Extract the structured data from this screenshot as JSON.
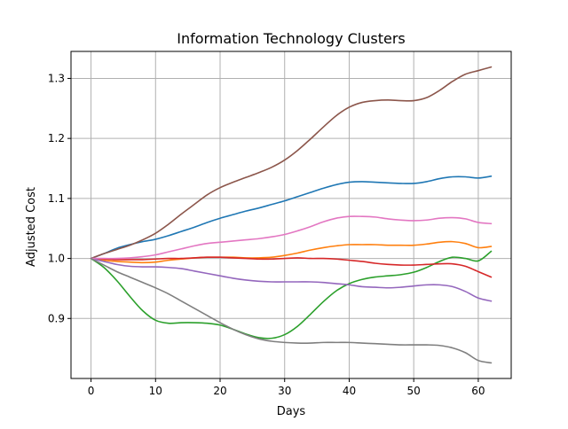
{
  "chart_data": {
    "type": "line",
    "title": "Information Technology Clusters",
    "xlabel": "Days",
    "ylabel": "Adjusted Cost",
    "xlim": [
      -3.1,
      65.1
    ],
    "ylim": [
      0.8,
      1.345
    ],
    "xticks": [
      0,
      10,
      20,
      30,
      40,
      50,
      60
    ],
    "yticks": [
      0.9,
      1.0,
      1.1,
      1.2,
      1.3
    ],
    "xtick_labels": [
      "0",
      "10",
      "20",
      "30",
      "40",
      "50",
      "60"
    ],
    "ytick_labels": [
      "0.9",
      "1.0",
      "1.1",
      "1.2",
      "1.3"
    ],
    "grid": true,
    "x": [
      0,
      2,
      4,
      6,
      8,
      10,
      12,
      14,
      16,
      18,
      20,
      22,
      24,
      26,
      28,
      30,
      32,
      34,
      36,
      38,
      40,
      42,
      44,
      46,
      48,
      50,
      52,
      54,
      56,
      58,
      60,
      62
    ],
    "series": [
      {
        "color": "#1f77b4",
        "values": [
          1.0,
          1.008,
          1.017,
          1.023,
          1.028,
          1.032,
          1.038,
          1.045,
          1.052,
          1.06,
          1.067,
          1.073,
          1.079,
          1.084,
          1.09,
          1.096,
          1.103,
          1.11,
          1.117,
          1.123,
          1.127,
          1.128,
          1.127,
          1.126,
          1.125,
          1.125,
          1.128,
          1.133,
          1.136,
          1.136,
          1.134,
          1.137
        ]
      },
      {
        "color": "#ff7f0e",
        "values": [
          1.0,
          0.997,
          0.995,
          0.994,
          0.993,
          0.994,
          0.997,
          0.999,
          1.001,
          1.002,
          1.002,
          1.002,
          1.001,
          1.001,
          1.002,
          1.005,
          1.009,
          1.014,
          1.018,
          1.021,
          1.023,
          1.023,
          1.023,
          1.022,
          1.022,
          1.022,
          1.024,
          1.027,
          1.028,
          1.025,
          1.018,
          1.02
        ]
      },
      {
        "color": "#2ca02c",
        "values": [
          1.0,
          0.985,
          0.963,
          0.937,
          0.913,
          0.897,
          0.892,
          0.893,
          0.893,
          0.892,
          0.889,
          0.882,
          0.874,
          0.868,
          0.867,
          0.873,
          0.887,
          0.907,
          0.928,
          0.946,
          0.958,
          0.965,
          0.969,
          0.971,
          0.973,
          0.977,
          0.985,
          0.995,
          1.002,
          1.0,
          0.996,
          1.012
        ]
      },
      {
        "color": "#d62728",
        "values": [
          1.0,
          0.999,
          0.998,
          0.998,
          0.998,
          0.999,
          1.0,
          1.0,
          1.001,
          1.002,
          1.002,
          1.001,
          1.0,
          0.999,
          0.999,
          1.0,
          1.001,
          1.0,
          1.0,
          0.999,
          0.997,
          0.995,
          0.992,
          0.99,
          0.989,
          0.989,
          0.99,
          0.991,
          0.991,
          0.987,
          0.978,
          0.969
        ]
      },
      {
        "color": "#9467bd",
        "values": [
          1.0,
          0.995,
          0.99,
          0.987,
          0.986,
          0.986,
          0.985,
          0.983,
          0.979,
          0.975,
          0.971,
          0.967,
          0.964,
          0.962,
          0.961,
          0.961,
          0.961,
          0.961,
          0.96,
          0.958,
          0.956,
          0.953,
          0.952,
          0.951,
          0.952,
          0.954,
          0.956,
          0.956,
          0.953,
          0.945,
          0.934,
          0.929
        ]
      },
      {
        "color": "#8c564b",
        "values": [
          1.0,
          1.008,
          1.015,
          1.022,
          1.031,
          1.042,
          1.057,
          1.074,
          1.09,
          1.106,
          1.118,
          1.127,
          1.135,
          1.143,
          1.152,
          1.164,
          1.18,
          1.199,
          1.219,
          1.238,
          1.252,
          1.26,
          1.263,
          1.264,
          1.263,
          1.263,
          1.268,
          1.28,
          1.295,
          1.307,
          1.313,
          1.319
        ]
      },
      {
        "color": "#e377c2",
        "values": [
          1.0,
          1.0,
          1.0,
          1.001,
          1.003,
          1.006,
          1.011,
          1.016,
          1.021,
          1.025,
          1.027,
          1.029,
          1.031,
          1.033,
          1.036,
          1.04,
          1.046,
          1.053,
          1.061,
          1.067,
          1.07,
          1.07,
          1.069,
          1.066,
          1.064,
          1.063,
          1.064,
          1.067,
          1.068,
          1.066,
          1.06,
          1.058
        ]
      },
      {
        "color": "#7f7f7f",
        "values": [
          1.0,
          0.989,
          0.978,
          0.969,
          0.96,
          0.951,
          0.941,
          0.929,
          0.917,
          0.905,
          0.893,
          0.882,
          0.873,
          0.866,
          0.862,
          0.86,
          0.859,
          0.859,
          0.86,
          0.86,
          0.86,
          0.859,
          0.858,
          0.857,
          0.856,
          0.856,
          0.856,
          0.855,
          0.851,
          0.843,
          0.83,
          0.826
        ]
      }
    ]
  }
}
